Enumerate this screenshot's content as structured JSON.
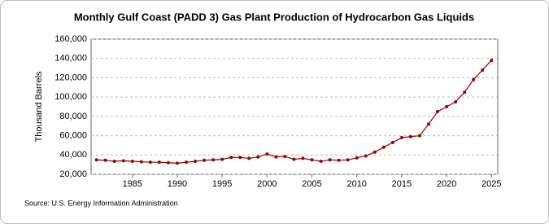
{
  "chart_data": {
    "type": "line",
    "title": "Monthly Gulf Coast (PADD 3) Gas Plant Production of Hydrocarbon Gas Liquids",
    "y_label": "Thousand Barrels",
    "source": "Source: U.S. Energy Information Administration",
    "x": [
      1981,
      1982,
      1983,
      1984,
      1985,
      1986,
      1987,
      1988,
      1989,
      1990,
      1991,
      1992,
      1993,
      1994,
      1995,
      1996,
      1997,
      1998,
      1999,
      2000,
      2001,
      2002,
      2003,
      2004,
      2005,
      2006,
      2007,
      2008,
      2009,
      2010,
      2011,
      2012,
      2013,
      2014,
      2015,
      2016,
      2017,
      2018,
      2019,
      2020,
      2021,
      2022,
      2023,
      2024,
      2025
    ],
    "series": [
      {
        "name": "Gas Plant Production",
        "color": "#990000",
        "values": [
          35000,
          34500,
          33500,
          34000,
          33500,
          33000,
          32500,
          32500,
          32000,
          31500,
          32500,
          33500,
          34500,
          35000,
          35500,
          37500,
          37500,
          36500,
          38000,
          41000,
          38000,
          38500,
          35500,
          36500,
          35000,
          33500,
          35000,
          34500,
          35000,
          37000,
          39000,
          43000,
          48000,
          53000,
          58000,
          59000,
          60000,
          72000,
          85000,
          90000,
          95000,
          105000,
          118000,
          128000,
          138000
        ]
      }
    ],
    "xlim": [
      1980.4,
      2025.7
    ],
    "xticks": [
      1985,
      1990,
      1995,
      2000,
      2005,
      2010,
      2015,
      2020,
      2025
    ],
    "ylim": [
      20000,
      160000
    ],
    "yticks": [
      {
        "value": 20000,
        "label": "20,000"
      },
      {
        "value": 40000,
        "label": "40,000"
      },
      {
        "value": 60000,
        "label": "60,000"
      },
      {
        "value": 80000,
        "label": "80,000"
      },
      {
        "value": 100000,
        "label": "100,000"
      },
      {
        "value": 120000,
        "label": "120,000"
      },
      {
        "value": 140000,
        "label": "140,000"
      },
      {
        "value": 160000,
        "label": "160,000"
      }
    ],
    "grid": true
  }
}
